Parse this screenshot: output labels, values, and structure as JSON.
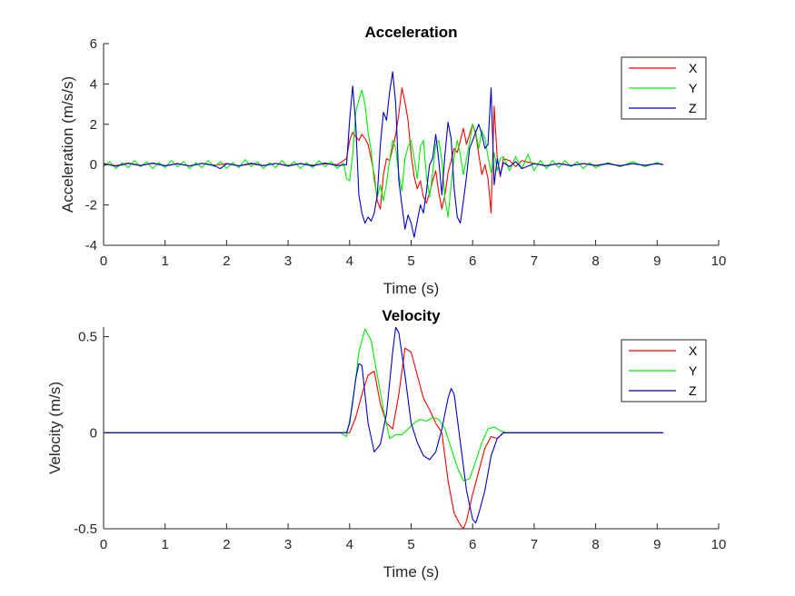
{
  "chart_data": [
    {
      "type": "line",
      "title": "Acceleration",
      "xlabel": "Time (s)",
      "ylabel": "Acceleration (m/s/s)",
      "xlim": [
        0,
        10
      ],
      "ylim": [
        -4,
        6
      ],
      "xticks": [
        0,
        1,
        2,
        3,
        4,
        5,
        6,
        7,
        8,
        9,
        10
      ],
      "yticks": [
        -4,
        -2,
        0,
        2,
        4,
        6
      ],
      "ytick_labels": [
        "-4",
        "-2",
        "0",
        "2",
        "4",
        "6"
      ],
      "grid": false,
      "legend": "top-right",
      "series": [
        {
          "name": "X",
          "color": "#ff0000",
          "x": [
            0,
            0.2,
            0.4,
            0.6,
            0.8,
            1.0,
            1.2,
            1.4,
            1.6,
            1.8,
            2.0,
            2.2,
            2.4,
            2.6,
            2.8,
            3.0,
            3.2,
            3.4,
            3.6,
            3.8,
            3.95,
            4.0,
            4.05,
            4.1,
            4.15,
            4.2,
            4.25,
            4.3,
            4.35,
            4.4,
            4.45,
            4.5,
            4.55,
            4.6,
            4.65,
            4.7,
            4.75,
            4.8,
            4.85,
            4.9,
            4.95,
            5.0,
            5.05,
            5.1,
            5.15,
            5.2,
            5.25,
            5.3,
            5.35,
            5.4,
            5.45,
            5.5,
            5.55,
            5.6,
            5.65,
            5.7,
            5.75,
            5.8,
            5.85,
            5.9,
            5.95,
            6.0,
            6.05,
            6.1,
            6.15,
            6.2,
            6.25,
            6.3,
            6.35,
            6.4,
            6.45,
            6.5,
            6.6,
            6.7,
            6.8,
            7.0,
            7.2,
            7.4,
            7.6,
            7.8,
            8.0,
            8.2,
            8.4,
            8.6,
            8.8,
            9.0,
            9.1
          ],
          "y": [
            0.05,
            -0.05,
            0.08,
            -0.04,
            0.06,
            -0.05,
            0.04,
            -0.06,
            0.07,
            -0.03,
            0.05,
            -0.06,
            0.04,
            -0.05,
            0.06,
            -0.04,
            0.05,
            -0.03,
            0.04,
            0.0,
            0.3,
            1.2,
            1.6,
            1.4,
            1.2,
            1.5,
            1.3,
            1.0,
            0.3,
            -0.5,
            -1.8,
            -2.2,
            -0.5,
            0.3,
            0.2,
            0.8,
            1.5,
            2.5,
            3.8,
            3.1,
            2.2,
            0.5,
            -0.6,
            -1.2,
            -0.8,
            -1.6,
            -1.9,
            -1.4,
            -0.8,
            -0.3,
            -1.4,
            -2.2,
            -1.5,
            -0.4,
            0.2,
            0.8,
            0.6,
            1.2,
            1.8,
            1.0,
            1.5,
            2.0,
            1.5,
            0.5,
            -0.5,
            0.0,
            -0.7,
            -2.4,
            2.9,
            0.3,
            -0.6,
            0.3,
            0.2,
            -0.1,
            0.2,
            0.05,
            -0.05,
            0.06,
            -0.04,
            0.05,
            -0.05,
            0.04,
            -0.05,
            0.05,
            -0.04,
            0.05,
            0.0
          ]
        },
        {
          "name": "Y",
          "color": "#00ee00",
          "x": [
            0,
            0.1,
            0.2,
            0.3,
            0.4,
            0.5,
            0.6,
            0.7,
            0.8,
            0.9,
            1.0,
            1.1,
            1.2,
            1.3,
            1.4,
            1.5,
            1.6,
            1.7,
            1.8,
            1.9,
            2.0,
            2.1,
            2.2,
            2.3,
            2.4,
            2.5,
            2.6,
            2.7,
            2.8,
            2.9,
            3.0,
            3.1,
            3.2,
            3.3,
            3.4,
            3.5,
            3.6,
            3.7,
            3.8,
            3.9,
            3.95,
            4.0,
            4.05,
            4.1,
            4.15,
            4.2,
            4.25,
            4.3,
            4.35,
            4.4,
            4.45,
            4.5,
            4.55,
            4.6,
            4.65,
            4.7,
            4.75,
            4.8,
            4.85,
            4.9,
            4.95,
            5.0,
            5.05,
            5.1,
            5.15,
            5.2,
            5.25,
            5.3,
            5.35,
            5.4,
            5.45,
            5.5,
            5.55,
            5.6,
            5.65,
            5.7,
            5.75,
            5.8,
            5.85,
            5.9,
            5.95,
            6.0,
            6.05,
            6.1,
            6.15,
            6.2,
            6.25,
            6.3,
            6.35,
            6.4,
            6.45,
            6.5,
            6.6,
            6.7,
            6.8,
            6.9,
            7.0,
            7.1,
            7.2,
            7.3,
            7.4,
            7.5,
            7.6,
            7.7,
            7.8,
            7.9,
            8.0,
            8.2,
            8.4,
            8.6,
            8.8,
            9.0,
            9.1
          ],
          "y": [
            -0.1,
            0.15,
            -0.2,
            0.1,
            -0.15,
            0.2,
            -0.1,
            0.15,
            -0.2,
            0.1,
            -0.15,
            0.2,
            -0.1,
            0.15,
            -0.2,
            0.1,
            -0.15,
            0.2,
            -0.1,
            0.15,
            -0.2,
            0.1,
            -0.15,
            0.25,
            -0.1,
            0.15,
            -0.2,
            0.1,
            -0.15,
            0.2,
            -0.1,
            0.15,
            -0.2,
            0.1,
            -0.15,
            0.2,
            -0.1,
            0.15,
            -0.2,
            0.1,
            -0.7,
            -0.8,
            0.5,
            2.6,
            3.2,
            3.7,
            3.0,
            1.6,
            0.7,
            -0.8,
            -1.6,
            -1.0,
            -1.8,
            -0.9,
            0.2,
            1.2,
            0.8,
            -0.5,
            -1.3,
            0.3,
            0.9,
            1.2,
            0.3,
            -0.7,
            0.9,
            1.2,
            -0.6,
            -1.6,
            -0.4,
            1.0,
            1.2,
            0.2,
            -1.7,
            -2.6,
            -1.0,
            0.4,
            1.2,
            0.5,
            -0.5,
            0.3,
            1.1,
            2.0,
            1.6,
            0.8,
            1.7,
            1.3,
            0.4,
            -0.4,
            0.6,
            -0.3,
            0.3,
            0.4,
            -0.3,
            0.4,
            -0.2,
            0.5,
            -0.3,
            0.2,
            -0.2,
            0.2,
            -0.15,
            0.2,
            -0.1,
            0.15,
            -0.2,
            0.1,
            -0.15,
            0.1,
            -0.1,
            0.15,
            -0.1,
            0.1,
            0.0
          ]
        },
        {
          "name": "Z",
          "color": "#0000cc",
          "x": [
            0,
            0.2,
            0.4,
            0.6,
            0.8,
            1.0,
            1.2,
            1.4,
            1.6,
            1.8,
            1.9,
            2.0,
            2.2,
            2.4,
            2.6,
            2.8,
            3.0,
            3.2,
            3.4,
            3.6,
            3.8,
            3.95,
            4.0,
            4.05,
            4.1,
            4.15,
            4.2,
            4.25,
            4.3,
            4.35,
            4.4,
            4.45,
            4.5,
            4.55,
            4.6,
            4.65,
            4.7,
            4.75,
            4.8,
            4.85,
            4.9,
            4.95,
            5.0,
            5.05,
            5.1,
            5.15,
            5.2,
            5.25,
            5.3,
            5.35,
            5.4,
            5.45,
            5.5,
            5.55,
            5.6,
            5.65,
            5.7,
            5.75,
            5.8,
            5.85,
            5.9,
            5.95,
            6.0,
            6.05,
            6.1,
            6.15,
            6.2,
            6.25,
            6.3,
            6.35,
            6.4,
            6.45,
            6.5,
            6.6,
            6.7,
            6.8,
            7.0,
            7.2,
            7.4,
            7.6,
            7.8,
            8.0,
            8.2,
            8.4,
            8.6,
            8.8,
            9.0,
            9.1
          ],
          "y": [
            0.05,
            -0.08,
            0.06,
            -0.05,
            0.08,
            -0.06,
            0.05,
            -0.07,
            0.06,
            -0.05,
            -0.2,
            0.05,
            -0.06,
            0.07,
            -0.05,
            0.06,
            -0.07,
            0.05,
            -0.06,
            0.08,
            -0.05,
            0.0,
            2.2,
            3.9,
            2.0,
            -1.5,
            -2.4,
            -2.9,
            -2.6,
            -2.8,
            -2.4,
            -1.5,
            1.0,
            2.6,
            2.2,
            3.6,
            4.6,
            3.0,
            -0.8,
            -2.0,
            -3.2,
            -2.5,
            -2.9,
            -3.6,
            -2.8,
            -2.0,
            -2.4,
            -1.3,
            0.0,
            0.3,
            1.5,
            0.2,
            -1.5,
            0.5,
            2.1,
            1.3,
            -1.2,
            -2.6,
            -2.9,
            -1.8,
            -0.6,
            0.8,
            1.2,
            1.6,
            2.0,
            1.5,
            0.8,
            1.0,
            3.8,
            -1.0,
            0.3,
            -0.5,
            0.1,
            -0.1,
            0.15,
            -0.2,
            0.05,
            -0.06,
            0.05,
            -0.05,
            0.06,
            -0.04,
            0.05,
            -0.06,
            0.05,
            -0.04,
            0.05,
            0.0
          ]
        }
      ]
    },
    {
      "type": "line",
      "title": "Velocity",
      "xlabel": "Time (s)",
      "ylabel": "Velocity (m/s)",
      "xlim": [
        0,
        10
      ],
      "ylim": [
        -0.5,
        0.55
      ],
      "xticks": [
        0,
        1,
        2,
        3,
        4,
        5,
        6,
        7,
        8,
        9,
        10
      ],
      "yticks": [
        -0.5,
        0,
        0.5
      ],
      "ytick_labels": [
        "-0.5",
        "0",
        "0.5"
      ],
      "grid": false,
      "legend": "top-right",
      "series": [
        {
          "name": "X",
          "color": "#ff0000",
          "x": [
            0,
            3.9,
            4.0,
            4.1,
            4.2,
            4.3,
            4.4,
            4.5,
            4.6,
            4.7,
            4.8,
            4.9,
            5.0,
            5.1,
            5.2,
            5.3,
            5.4,
            5.5,
            5.6,
            5.7,
            5.8,
            5.85,
            5.9,
            6.0,
            6.1,
            6.2,
            6.3,
            6.4,
            6.5,
            9.1
          ],
          "y": [
            0,
            0,
            0.0,
            0.08,
            0.2,
            0.3,
            0.32,
            0.15,
            0.05,
            0.02,
            0.2,
            0.44,
            0.42,
            0.3,
            0.18,
            0.12,
            0.05,
            0.0,
            -0.25,
            -0.42,
            -0.48,
            -0.5,
            -0.46,
            -0.32,
            -0.2,
            -0.08,
            -0.02,
            -0.03,
            0.0,
            0
          ]
        },
        {
          "name": "Y",
          "color": "#00ee00",
          "x": [
            0,
            3.85,
            3.95,
            4.05,
            4.15,
            4.25,
            4.35,
            4.45,
            4.55,
            4.65,
            4.75,
            4.85,
            4.95,
            5.05,
            5.15,
            5.25,
            5.35,
            5.45,
            5.55,
            5.65,
            5.75,
            5.85,
            5.95,
            6.05,
            6.15,
            6.25,
            6.35,
            6.45,
            6.55,
            9.1
          ],
          "y": [
            0,
            0,
            -0.02,
            0.15,
            0.42,
            0.54,
            0.48,
            0.3,
            0.12,
            -0.03,
            -0.01,
            -0.01,
            0.02,
            0.05,
            0.07,
            0.06,
            0.08,
            0.07,
            0.02,
            -0.08,
            -0.18,
            -0.25,
            -0.24,
            -0.15,
            -0.05,
            0.02,
            0.03,
            0.01,
            0.0,
            0
          ]
        },
        {
          "name": "Z",
          "color": "#0000cc",
          "x": [
            0,
            3.95,
            4.0,
            4.1,
            4.15,
            4.2,
            4.3,
            4.4,
            4.5,
            4.6,
            4.7,
            4.75,
            4.8,
            4.9,
            5.0,
            5.1,
            5.2,
            5.3,
            5.4,
            5.5,
            5.6,
            5.65,
            5.7,
            5.8,
            5.9,
            6.0,
            6.05,
            6.1,
            6.2,
            6.3,
            6.4,
            6.5,
            9.1
          ],
          "y": [
            0,
            0,
            0.05,
            0.28,
            0.36,
            0.35,
            0.05,
            -0.1,
            -0.06,
            0.1,
            0.42,
            0.55,
            0.52,
            0.3,
            0.05,
            -0.05,
            -0.12,
            -0.14,
            -0.1,
            0.02,
            0.18,
            0.23,
            0.2,
            -0.05,
            -0.3,
            -0.45,
            -0.47,
            -0.42,
            -0.3,
            -0.12,
            -0.03,
            0.0,
            0
          ]
        }
      ]
    }
  ]
}
